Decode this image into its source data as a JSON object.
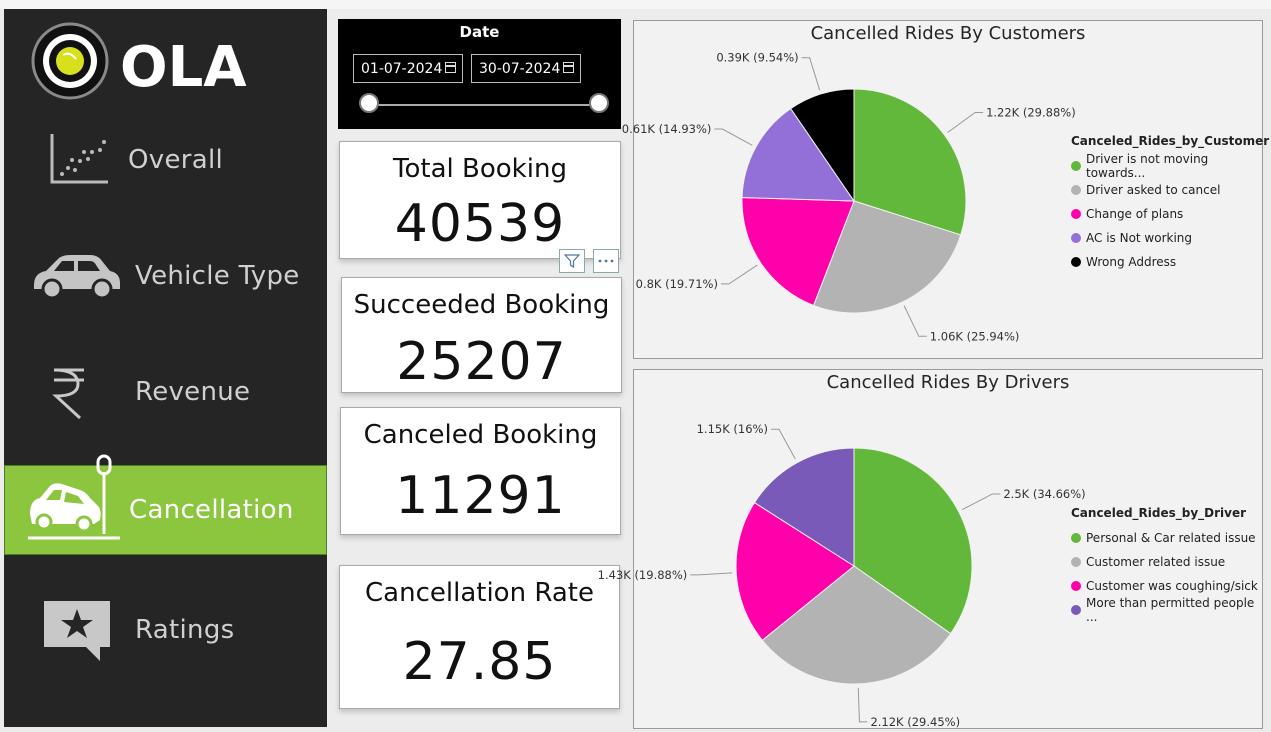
{
  "brand": {
    "name": "OLA"
  },
  "sidebar": {
    "items": [
      {
        "label": "Overall",
        "icon": "scatter-chart-icon"
      },
      {
        "label": "Vehicle Type",
        "icon": "car-icon"
      },
      {
        "label": "Revenue",
        "icon": "rupee-icon"
      },
      {
        "label": "Cancellation",
        "icon": "car-crash-icon",
        "active": true
      },
      {
        "label": "Ratings",
        "icon": "star-chat-icon"
      }
    ]
  },
  "date_slicer": {
    "title": "Date",
    "start": "01-07-2024",
    "end": "30-07-2024"
  },
  "kpis": [
    {
      "title": "Total Booking",
      "value": "40539"
    },
    {
      "title": "Succeeded Booking",
      "value": "25207"
    },
    {
      "title": "Canceled Booking",
      "value": "11291"
    },
    {
      "title": "Cancellation Rate",
      "value": "27.85"
    }
  ],
  "colors": {
    "sidebar_bg": "#252525",
    "active": "#8cc63f",
    "green": "#61b83a",
    "gray": "#b3b3b3",
    "pink": "#ff00aa",
    "purple": "#9370d8",
    "black": "#000000",
    "dark_purple": "#7a5ab8"
  },
  "chart_data": [
    {
      "type": "pie",
      "title": "Cancelled Rides By Customers",
      "legend_title": "Canceled_Rides_by_Customer",
      "legend_position": "right",
      "categories": [
        "Driver is not moving towards...",
        "Driver asked to cancel",
        "Change of plans",
        "AC is Not working",
        "Wrong Address"
      ],
      "values": [
        1220,
        1060,
        800,
        610,
        390
      ],
      "percent": [
        29.88,
        25.94,
        19.71,
        14.93,
        9.54
      ],
      "data_labels": [
        "1.22K (29.88%)",
        "1.06K (25.94%)",
        "0.8K (19.71%)",
        "0.61K (14.93%)",
        "0.39K (9.54%)"
      ],
      "colors": [
        "#61b83a",
        "#b3b3b3",
        "#ff00aa",
        "#9370d8",
        "#000000"
      ]
    },
    {
      "type": "pie",
      "title": "Cancelled Rides By Drivers",
      "legend_title": "Canceled_Rides_by_Driver",
      "legend_position": "right",
      "categories": [
        "Personal & Car related issue",
        "Customer related issue",
        "Customer was coughing/sick",
        "More than permitted people ..."
      ],
      "values": [
        2500,
        2120,
        1430,
        1150
      ],
      "percent": [
        34.66,
        29.45,
        19.88,
        16
      ],
      "data_labels": [
        "2.5K (34.66%)",
        "2.12K (29.45%)",
        "1.43K (19.88%)",
        "1.15K (16%)"
      ],
      "colors": [
        "#61b83a",
        "#b3b3b3",
        "#ff00aa",
        "#7a5ab8"
      ]
    }
  ]
}
